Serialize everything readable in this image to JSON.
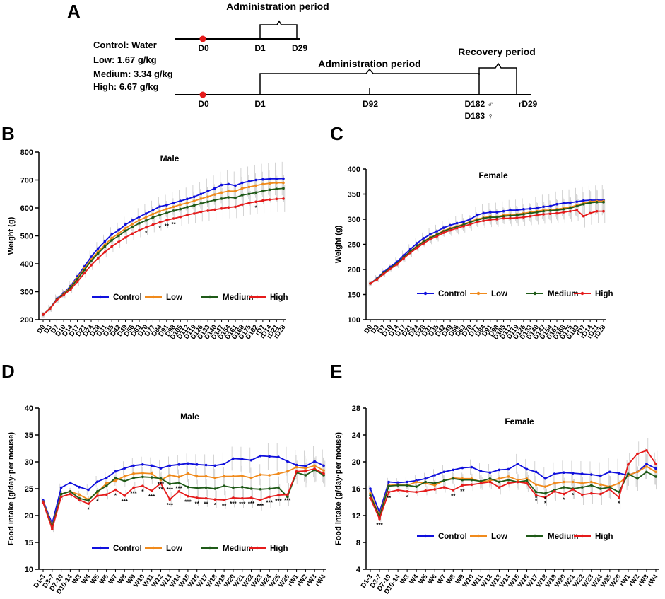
{
  "panel_labels": {
    "a": "A",
    "b": "B",
    "c": "C",
    "d": "D",
    "e": "E"
  },
  "timeline": {
    "doses": [
      "Control: Water",
      "Low: 1.67 g/kg",
      "Medium: 3.34 g/kg",
      "High: 6.67 g/kg"
    ],
    "short": {
      "period_label": "Administration period",
      "ticks": [
        "D0",
        "D1",
        "D29"
      ]
    },
    "long": {
      "admin_label": "Administration  period",
      "recovery_label": "Recovery period",
      "ticks": [
        "D0",
        "D1",
        "D92",
        "D182 ♂",
        "D183 ♀",
        "rD29"
      ]
    }
  },
  "colors": {
    "Control": "#1010dd",
    "Low": "#f08a1c",
    "Medium": "#1f5a18",
    "High": "#e51b1b",
    "error_bar": "#c9c9c9"
  },
  "chart_data": [
    {
      "id": "B",
      "type": "line",
      "title": "Male",
      "xlabel": "",
      "ylabel": "Weight (g)",
      "ylim": [
        200,
        800
      ],
      "yticks": [
        "200",
        "300",
        "400",
        "500",
        "600",
        "700",
        "800"
      ],
      "categories": [
        "D0",
        "D3",
        "D7",
        "D10",
        "D14",
        "D17",
        "D21",
        "D24",
        "D28",
        "D31",
        "D35",
        "D42",
        "D49",
        "D56",
        "D63",
        "D70",
        "D77",
        "D84",
        "D91",
        "D98",
        "D105",
        "D112",
        "D119",
        "D126",
        "D133",
        "D140",
        "D147",
        "D154",
        "D161",
        "D168",
        "D175",
        "D182",
        "rD7",
        "rD14",
        "rD21",
        "rD28"
      ],
      "legend": [
        "Control",
        "Low",
        "Medium",
        "High"
      ],
      "series": [
        {
          "name": "Control",
          "values": [
            218,
            240,
            275,
            295,
            320,
            355,
            390,
            425,
            455,
            480,
            505,
            520,
            540,
            555,
            568,
            580,
            592,
            605,
            610,
            618,
            625,
            632,
            640,
            650,
            660,
            670,
            682,
            685,
            680,
            690,
            695,
            700,
            702,
            704,
            704,
            705
          ]
        },
        {
          "name": "Low",
          "values": [
            218,
            240,
            273,
            293,
            316,
            350,
            383,
            415,
            443,
            468,
            492,
            508,
            527,
            542,
            556,
            567,
            578,
            588,
            596,
            604,
            612,
            618,
            625,
            633,
            640,
            648,
            655,
            660,
            660,
            670,
            675,
            680,
            685,
            688,
            690,
            690
          ]
        },
        {
          "name": "Medium",
          "values": [
            218,
            240,
            272,
            291,
            314,
            345,
            378,
            410,
            437,
            462,
            484,
            500,
            518,
            532,
            545,
            555,
            566,
            575,
            582,
            590,
            596,
            603,
            609,
            616,
            622,
            628,
            633,
            638,
            636,
            646,
            650,
            655,
            660,
            665,
            668,
            670
          ]
        },
        {
          "name": "High",
          "values": [
            218,
            239,
            270,
            288,
            308,
            336,
            366,
            395,
            420,
            442,
            462,
            478,
            494,
            508,
            520,
            530,
            540,
            548,
            556,
            562,
            568,
            575,
            580,
            586,
            590,
            594,
            598,
            602,
            604,
            612,
            618,
            622,
            626,
            630,
            632,
            633
          ]
        }
      ],
      "annotations": [
        "*",
        "*",
        "**",
        "**",
        "*"
      ]
    },
    {
      "id": "C",
      "type": "line",
      "title": "Female",
      "xlabel": "",
      "ylabel": "Weight (g)",
      "ylim": [
        100,
        400
      ],
      "yticks": [
        "100",
        "150",
        "200",
        "250",
        "300",
        "350",
        "400"
      ],
      "categories": [
        "D0",
        "D3",
        "D7",
        "D10",
        "D14",
        "D17",
        "D21",
        "D24",
        "D28",
        "D31",
        "D35",
        "D42",
        "D49",
        "D56",
        "D63",
        "D70",
        "D77",
        "D84",
        "D91",
        "D98",
        "D105",
        "D112",
        "D119",
        "D126",
        "D133",
        "D140",
        "D147",
        "D154",
        "D161",
        "D168",
        "D175",
        "D183",
        "rD7",
        "rD14",
        "rD21",
        "rD28"
      ],
      "legend": [
        "Control",
        "Low",
        "Medium",
        "High"
      ],
      "series": [
        {
          "name": "Control",
          "values": [
            172,
            182,
            195,
            205,
            215,
            228,
            240,
            252,
            262,
            270,
            276,
            283,
            288,
            292,
            295,
            300,
            308,
            312,
            314,
            314,
            316,
            318,
            318,
            320,
            321,
            322,
            325,
            326,
            330,
            332,
            333,
            335,
            337,
            338,
            338,
            338
          ]
        },
        {
          "name": "Low",
          "values": [
            172,
            181,
            193,
            203,
            212,
            224,
            236,
            247,
            256,
            264,
            270,
            277,
            282,
            286,
            290,
            295,
            300,
            303,
            306,
            305,
            308,
            309,
            310,
            312,
            314,
            316,
            318,
            318,
            320,
            322,
            324,
            328,
            332,
            335,
            336,
            336
          ]
        },
        {
          "name": "Medium",
          "values": [
            172,
            181,
            193,
            203,
            212,
            224,
            236,
            246,
            255,
            263,
            269,
            276,
            281,
            285,
            289,
            294,
            298,
            302,
            304,
            304,
            306,
            307,
            308,
            310,
            312,
            314,
            316,
            317,
            318,
            320,
            322,
            326,
            330,
            333,
            334,
            334
          ]
        },
        {
          "name": "High",
          "values": [
            172,
            180,
            191,
            201,
            210,
            222,
            233,
            243,
            252,
            260,
            266,
            273,
            278,
            282,
            286,
            290,
            294,
            297,
            299,
            300,
            302,
            302,
            303,
            304,
            306,
            308,
            310,
            311,
            312,
            314,
            316,
            318,
            306,
            312,
            316,
            316
          ]
        }
      ],
      "annotations": []
    },
    {
      "id": "D",
      "type": "line",
      "title": "Male",
      "xlabel": "",
      "ylabel": "Food intake (g/day·per mouse)",
      "ylim": [
        10,
        40
      ],
      "yticks": [
        "10",
        "15",
        "20",
        "25",
        "30",
        "35",
        "40"
      ],
      "categories": [
        "D1-3",
        "D3-7",
        "D7-10",
        "D10-14",
        "W3",
        "W4",
        "W5",
        "W6",
        "W7",
        "W8",
        "W9",
        "W10",
        "W11",
        "W12",
        "W13",
        "W14",
        "W15",
        "W16",
        "W17",
        "W18",
        "W19",
        "W20",
        "W21",
        "W22",
        "W23",
        "W24",
        "W25",
        "W26",
        "rW1",
        "rW2",
        "rW3",
        "rW4"
      ],
      "legend": [
        "Control",
        "Low",
        "Medium",
        "High"
      ],
      "series": [
        {
          "name": "Control",
          "values": [
            22.8,
            18.5,
            25.2,
            26.1,
            25.3,
            24.8,
            26.3,
            27.0,
            28.2,
            28.8,
            29.3,
            29.5,
            29.3,
            28.8,
            29.3,
            29.5,
            29.7,
            29.5,
            29.4,
            29.3,
            29.6,
            30.6,
            30.5,
            30.3,
            31.1,
            31.0,
            30.9,
            30.1,
            29.4,
            29.2,
            30.1,
            29.3
          ]
        },
        {
          "name": "Low",
          "values": [
            22.6,
            18.0,
            24.0,
            24.5,
            23.9,
            23.0,
            24.3,
            26.0,
            26.5,
            27.3,
            27.8,
            27.9,
            27.8,
            26.6,
            27.5,
            27.2,
            27.8,
            27.3,
            27.3,
            27.0,
            27.3,
            27.3,
            27.4,
            27.0,
            27.6,
            27.5,
            27.8,
            28.2,
            29.0,
            28.8,
            29.3,
            28.4
          ]
        },
        {
          "name": "Medium",
          "values": [
            22.5,
            17.8,
            24.0,
            24.5,
            23.2,
            22.8,
            24.5,
            25.5,
            27.0,
            26.4,
            27.0,
            27.2,
            27.1,
            26.9,
            25.9,
            26.1,
            25.3,
            25.1,
            25.2,
            25.0,
            25.5,
            25.2,
            25.3,
            25.0,
            24.9,
            25.0,
            25.2,
            23.5,
            28.0,
            27.5,
            28.5,
            27.5
          ]
        },
        {
          "name": "High",
          "values": [
            22.4,
            17.5,
            23.5,
            24.0,
            22.9,
            22.2,
            23.7,
            23.9,
            24.8,
            23.7,
            25.2,
            25.5,
            24.6,
            26.0,
            23.0,
            24.5,
            23.6,
            23.3,
            23.2,
            23.0,
            22.9,
            23.3,
            23.2,
            23.3,
            22.9,
            23.5,
            23.8,
            23.9,
            28.2,
            28.3,
            28.7,
            27.8
          ]
        }
      ],
      "annotations": [
        "*",
        "*",
        "*",
        "***",
        "***",
        "*",
        "***",
        "**",
        "***",
        "***",
        "**",
        "**",
        "*",
        "**",
        "***",
        "***",
        "***",
        "***",
        "***",
        "***",
        "***",
        "***",
        "***",
        "***"
      ]
    },
    {
      "id": "E",
      "type": "line",
      "title": "Female",
      "xlabel": "",
      "ylabel": "Food intake (g/day·per mouse)",
      "ylim": [
        4,
        28
      ],
      "yticks": [
        "4",
        "8",
        "12",
        "16",
        "20",
        "24",
        "28"
      ],
      "categories": [
        "D1-3",
        "D3-7",
        "D7-10",
        "D10-14",
        "W3",
        "W4",
        "W5",
        "W6",
        "W7",
        "W8",
        "W9",
        "W10",
        "W11",
        "W12",
        "W13",
        "W14",
        "W15",
        "W16",
        "W17",
        "W18",
        "W19",
        "W20",
        "W21",
        "W22",
        "W23",
        "W24",
        "W25",
        "W26",
        "rW1",
        "rW2",
        "rW3",
        "rW4"
      ],
      "legend": [
        "Control",
        "Low",
        "Medium",
        "High"
      ],
      "series": [
        {
          "name": "Control",
          "values": [
            16.0,
            12.5,
            17.0,
            16.9,
            17.0,
            17.2,
            17.5,
            18.0,
            18.5,
            18.8,
            19.1,
            19.2,
            18.6,
            18.4,
            18.8,
            18.9,
            19.7,
            18.9,
            18.5,
            17.5,
            18.2,
            18.4,
            18.3,
            18.2,
            18.1,
            17.9,
            18.5,
            18.3,
            18.0,
            18.5,
            19.7,
            19.0
          ]
        },
        {
          "name": "Low",
          "values": [
            15.3,
            12.0,
            16.5,
            16.6,
            16.5,
            17.0,
            16.8,
            16.5,
            17.2,
            17.6,
            17.5,
            17.5,
            17.0,
            17.2,
            17.5,
            17.8,
            17.3,
            17.5,
            16.6,
            16.3,
            16.8,
            17.0,
            17.0,
            16.8,
            17.0,
            16.6,
            16.3,
            16.8,
            18.0,
            18.5,
            19.3,
            18.5
          ]
        },
        {
          "name": "Medium",
          "values": [
            15.0,
            11.8,
            16.4,
            16.5,
            16.5,
            16.3,
            17.0,
            16.8,
            17.2,
            17.5,
            17.3,
            17.3,
            17.1,
            17.5,
            17.0,
            17.3,
            17.0,
            17.2,
            15.5,
            15.3,
            15.8,
            16.2,
            16.0,
            16.2,
            16.5,
            16.0,
            16.2,
            15.5,
            18.2,
            17.5,
            18.5,
            17.8
          ]
        },
        {
          "name": "High",
          "values": [
            14.6,
            11.5,
            15.5,
            15.8,
            15.6,
            15.5,
            15.7,
            15.9,
            16.2,
            15.8,
            16.5,
            16.6,
            16.8,
            17.0,
            16.2,
            16.8,
            17.0,
            16.8,
            15.0,
            14.7,
            15.6,
            15.2,
            15.9,
            15.1,
            15.3,
            15.2,
            15.9,
            14.7,
            19.6,
            21.2,
            21.7,
            19.7
          ]
        }
      ],
      "annotations": [
        "***",
        "**",
        "*",
        "**",
        "**",
        "*",
        "*",
        "*",
        "*",
        "*",
        "*",
        "*"
      ]
    }
  ]
}
